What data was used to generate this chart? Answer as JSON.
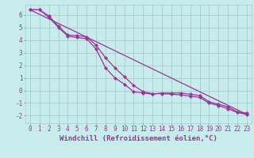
{
  "background_color": "#c8ecec",
  "grid_color": "#a0d0d0",
  "line_color": "#993399",
  "marker_color": "#993399",
  "xlabel": "Windchill (Refroidissement éolien,°C)",
  "xlabel_fontsize": 6.5,
  "xlim": [
    -0.5,
    23.5
  ],
  "ylim": [
    -2.6,
    6.8
  ],
  "yticks": [
    -2,
    -1,
    0,
    1,
    2,
    3,
    4,
    5,
    6
  ],
  "xticks": [
    0,
    1,
    2,
    3,
    4,
    5,
    6,
    7,
    8,
    9,
    10,
    11,
    12,
    13,
    14,
    15,
    16,
    17,
    18,
    19,
    20,
    21,
    22,
    23
  ],
  "line1_x": [
    0,
    1,
    2,
    3,
    4,
    5,
    6,
    7,
    8,
    9,
    10,
    11,
    12,
    13,
    14,
    15,
    16,
    17,
    18,
    19,
    20,
    21,
    22,
    23
  ],
  "line1_y": [
    6.4,
    6.4,
    5.8,
    5.0,
    4.3,
    4.2,
    4.1,
    3.3,
    1.8,
    1.0,
    0.5,
    -0.1,
    -0.2,
    -0.3,
    -0.2,
    -0.2,
    -0.2,
    -0.3,
    -0.4,
    -0.9,
    -1.1,
    -1.3,
    -1.7,
    -1.8
  ],
  "line2_x": [
    0,
    1,
    2,
    3,
    4,
    5,
    6,
    7,
    8,
    9,
    10,
    11,
    12,
    13,
    14,
    15,
    16,
    17,
    18,
    19,
    20,
    21,
    22,
    23
  ],
  "line2_y": [
    6.4,
    6.4,
    5.9,
    5.1,
    4.4,
    4.35,
    4.25,
    3.6,
    2.6,
    1.8,
    1.1,
    0.4,
    -0.1,
    -0.25,
    -0.25,
    -0.3,
    -0.35,
    -0.45,
    -0.55,
    -1.0,
    -1.2,
    -1.45,
    -1.75,
    -1.9
  ],
  "line3_x": [
    0,
    23
  ],
  "line3_y": [
    6.4,
    -1.9
  ],
  "tick_fontsize": 5.5,
  "tick_color": "#993399",
  "ylabel_ticks": [
    "-2",
    "-1",
    "0",
    "1",
    "2",
    "3",
    "4",
    "5",
    "6"
  ]
}
